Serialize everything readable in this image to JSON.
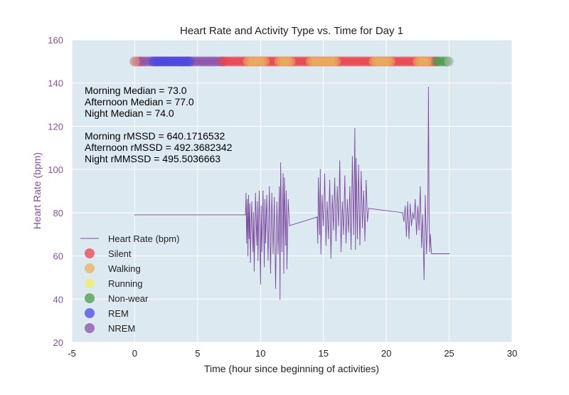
{
  "colors": {
    "plot_bg": "#dde9f1",
    "grid": "#ffffff",
    "heart_line": "#7b4aa0",
    "ytick": "#8a4fa0",
    "text": "#222222",
    "silent": "#e8434a",
    "walking": "#e8b060",
    "running": "#eeee66",
    "nonwear": "#4a9a4a",
    "rem": "#4848e0",
    "nrem": "#8a4fa8"
  },
  "chart_data": {
    "type": "line",
    "title": "Heart Rate and Activity Type vs. Time for Day 1",
    "xlabel": "Time (hour since beginning of activities)",
    "ylabel": "Heart Rate (bpm)",
    "xlim": [
      -5,
      30
    ],
    "ylim": [
      20,
      160
    ],
    "xticks": [
      -5,
      0,
      5,
      10,
      15,
      20,
      25,
      30
    ],
    "yticks": [
      20,
      40,
      60,
      80,
      100,
      120,
      140,
      160
    ],
    "grid": true,
    "legend_position": "lower-left",
    "legend": [
      {
        "label": "Heart Rate (bpm)",
        "kind": "line",
        "color_key": "heart_line"
      },
      {
        "label": "Silent",
        "kind": "marker",
        "color_key": "silent"
      },
      {
        "label": "Walking",
        "kind": "marker",
        "color_key": "walking"
      },
      {
        "label": "Running",
        "kind": "marker",
        "color_key": "running"
      },
      {
        "label": "Non-wear",
        "kind": "marker",
        "color_key": "nonwear"
      },
      {
        "label": "REM",
        "kind": "marker",
        "color_key": "rem"
      },
      {
        "label": "NREM",
        "kind": "marker",
        "color_key": "nrem"
      }
    ],
    "annotations": [
      "Morning Median = 73.0",
      "Afternoon Median = 77.0",
      "Night Median = 74.0",
      "",
      "Morning rMSSD = 640.1716532",
      "Afternoon rMSSD = 492.3682342",
      "Night rMMSSD = 495.5036663"
    ],
    "series": [
      {
        "name": "Heart Rate (bpm)",
        "x": [
          0.0,
          8.8,
          8.85,
          8.9,
          8.95,
          9.0,
          9.05,
          9.1,
          9.15,
          9.2,
          9.3,
          9.4,
          9.45,
          9.5,
          9.6,
          9.7,
          9.75,
          9.8,
          9.9,
          10.0,
          10.05,
          10.1,
          10.2,
          10.3,
          10.35,
          10.4,
          10.5,
          10.6,
          10.7,
          10.8,
          10.9,
          11.0,
          11.1,
          11.2,
          11.3,
          11.4,
          11.5,
          11.55,
          11.6,
          11.7,
          11.8,
          11.85,
          11.9,
          12.0,
          12.05,
          12.1,
          12.2,
          12.3,
          14.5,
          14.55,
          14.6,
          14.7,
          14.75,
          14.8,
          14.9,
          15.0,
          15.1,
          15.2,
          15.3,
          15.4,
          15.5,
          15.6,
          15.7,
          15.8,
          15.9,
          16.0,
          16.1,
          16.2,
          16.3,
          16.4,
          16.5,
          16.6,
          16.7,
          16.8,
          16.9,
          17.0,
          17.1,
          17.2,
          17.3,
          17.4,
          17.5,
          17.55,
          17.6,
          17.7,
          17.8,
          17.9,
          18.0,
          18.1,
          18.2,
          18.3,
          18.4,
          18.5,
          18.6,
          21.3,
          21.4,
          21.5,
          21.6,
          21.7,
          21.8,
          21.9,
          22.0,
          22.1,
          22.2,
          22.3,
          22.4,
          22.5,
          22.6,
          22.7,
          22.8,
          22.9,
          23.0,
          23.1,
          23.2,
          23.3,
          23.35,
          23.4,
          23.45,
          23.5,
          23.6,
          24.0,
          25.0
        ],
        "y": [
          79,
          79,
          89,
          66,
          86,
          60,
          88,
          68,
          84,
          57,
          85,
          62,
          80,
          53,
          89,
          65,
          85,
          58,
          90,
          47,
          83,
          62,
          90,
          55,
          86,
          66,
          88,
          58,
          92,
          52,
          89,
          61,
          87,
          45,
          85,
          61,
          92,
          40,
          103,
          62,
          98,
          52,
          96,
          65,
          90,
          54,
          86,
          74,
          78,
          66,
          96,
          70,
          100,
          61,
          88,
          74,
          98,
          65,
          85,
          68,
          95,
          59,
          88,
          72,
          96,
          67,
          92,
          74,
          104,
          62,
          85,
          70,
          97,
          66,
          86,
          71,
          92,
          63,
          106,
          70,
          119,
          63,
          105,
          68,
          102,
          65,
          99,
          73,
          90,
          67,
          95,
          76,
          82,
          80,
          76,
          83,
          69,
          85,
          68,
          84,
          74,
          80,
          77,
          86,
          70,
          83,
          72,
          92,
          64,
          79,
          49,
          88,
          61,
          80,
          138,
          80,
          62,
          70,
          61,
          61,
          61
        ],
        "segment_breaks_after_x": [
          12.3,
          18.6
        ]
      }
    ],
    "activity_strip": {
      "y": 150,
      "x_start": 0.0,
      "x_end": 25.0,
      "segments": [
        {
          "from": 0.0,
          "to": 0.6,
          "type": "silent"
        },
        {
          "from": 0.6,
          "to": 7.0,
          "type": "nrem"
        },
        {
          "from": 1.5,
          "to": 4.5,
          "type": "rem"
        },
        {
          "from": 7.0,
          "to": 24.0,
          "type": "silent"
        },
        {
          "from": 9.0,
          "to": 10.5,
          "type": "walking"
        },
        {
          "from": 11.5,
          "to": 12.5,
          "type": "walking"
        },
        {
          "from": 14.0,
          "to": 16.0,
          "type": "walking"
        },
        {
          "from": 19.0,
          "to": 20.5,
          "type": "walking"
        },
        {
          "from": 22.5,
          "to": 23.5,
          "type": "walking"
        },
        {
          "from": 24.0,
          "to": 25.0,
          "type": "nonwear"
        }
      ]
    }
  }
}
